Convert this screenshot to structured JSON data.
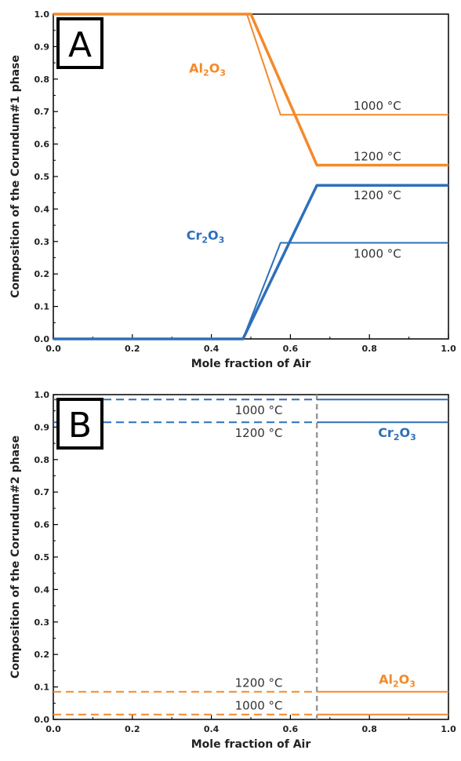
{
  "colors": {
    "al2o3": "#f5892a",
    "cr2o3": "#2e6fba",
    "divider": "#999999"
  },
  "chart_data": [
    {
      "type": "line",
      "panel_label": "A",
      "xlabel": "Mole fraction of Air",
      "ylabel": "Composition of the Corundum#1 phase",
      "xlim": [
        0,
        1
      ],
      "ylim": [
        0,
        1
      ],
      "x_ticks": [
        "0.0",
        "0.2",
        "0.4",
        "0.6",
        "0.8",
        "1.0"
      ],
      "y_ticks": [
        "0.0",
        "0.1",
        "0.2",
        "0.3",
        "0.4",
        "0.5",
        "0.6",
        "0.7",
        "0.8",
        "0.9",
        "1.0"
      ],
      "series": [
        {
          "component": "Al2O3",
          "temp": "1000 °C",
          "color": "#f5892a",
          "style": "solid",
          "width": 2,
          "points": [
            [
              0,
              1.0
            ],
            [
              0.49,
              1.0
            ],
            [
              0.575,
              0.69
            ],
            [
              1.0,
              0.69
            ]
          ]
        },
        {
          "component": "Al2O3",
          "temp": "1200 °C",
          "color": "#f5892a",
          "style": "solid",
          "width": 3.5,
          "points": [
            [
              0,
              1.0
            ],
            [
              0.5,
              1.0
            ],
            [
              0.667,
              0.535
            ],
            [
              1.0,
              0.535
            ]
          ]
        },
        {
          "component": "Cr2O3",
          "temp": "1200 °C",
          "color": "#2e6fba",
          "style": "solid",
          "width": 3.5,
          "points": [
            [
              0,
              0.0
            ],
            [
              0.48,
              0.0
            ],
            [
              0.667,
              0.473
            ],
            [
              1.0,
              0.473
            ]
          ]
        },
        {
          "component": "Cr2O3",
          "temp": "1000 °C",
          "color": "#2e6fba",
          "style": "solid",
          "width": 2,
          "points": [
            [
              0,
              0.0
            ],
            [
              0.48,
              0.0
            ],
            [
              0.575,
              0.296
            ],
            [
              1.0,
              0.296
            ]
          ]
        }
      ],
      "annotations": [
        {
          "text": "1000 °C",
          "x": 0.82,
          "y": 0.705
        },
        {
          "text": "1200 °C",
          "x": 0.82,
          "y": 0.55
        },
        {
          "text": "1200 °C",
          "x": 0.82,
          "y": 0.43
        },
        {
          "text": "1000 °C",
          "x": 0.82,
          "y": 0.25
        }
      ],
      "components": [
        {
          "sub": [
            "Al",
            "2",
            "O",
            "3"
          ],
          "color": "#f5892a",
          "x": 0.39,
          "y": 0.82
        },
        {
          "sub": [
            "Cr",
            "2",
            "O",
            "3"
          ],
          "color": "#2e6fba",
          "x": 0.385,
          "y": 0.305
        }
      ]
    },
    {
      "type": "line",
      "panel_label": "B",
      "xlabel": "Mole fraction of Air",
      "ylabel": "Composition of the Corundum#2 phase",
      "xlim": [
        0,
        1
      ],
      "ylim": [
        0,
        1
      ],
      "x_ticks": [
        "0.0",
        "0.2",
        "0.4",
        "0.6",
        "0.8",
        "1.0"
      ],
      "y_ticks": [
        "0.0",
        "0.1",
        "0.2",
        "0.3",
        "0.4",
        "0.5",
        "0.6",
        "0.7",
        "0.8",
        "0.9",
        "1.0"
      ],
      "divider_x": 0.667,
      "series": [
        {
          "component": "Cr2O3",
          "temp": "1000 °C",
          "color": "#2e6fba",
          "style": "dashed",
          "width": 2,
          "points": [
            [
              0,
              0.985
            ],
            [
              0.667,
              0.985
            ]
          ]
        },
        {
          "component": "Cr2O3",
          "temp": "1000 °C",
          "color": "#2e6fba",
          "style": "solid",
          "width": 2,
          "points": [
            [
              0.667,
              0.985
            ],
            [
              1.0,
              0.985
            ]
          ]
        },
        {
          "component": "Cr2O3",
          "temp": "1200 °C",
          "color": "#2e6fba",
          "style": "dashed",
          "width": 2,
          "points": [
            [
              0,
              0.915
            ],
            [
              0.667,
              0.915
            ]
          ]
        },
        {
          "component": "Cr2O3",
          "temp": "1200 °C",
          "color": "#2e6fba",
          "style": "solid",
          "width": 2,
          "points": [
            [
              0.667,
              0.915
            ],
            [
              1.0,
              0.915
            ]
          ]
        },
        {
          "component": "Al2O3",
          "temp": "1200 °C",
          "color": "#f5892a",
          "style": "dashed",
          "width": 2,
          "points": [
            [
              0,
              0.085
            ],
            [
              0.667,
              0.085
            ]
          ]
        },
        {
          "component": "Al2O3",
          "temp": "1200 °C",
          "color": "#f5892a",
          "style": "solid",
          "width": 2,
          "points": [
            [
              0.667,
              0.085
            ],
            [
              1.0,
              0.085
            ]
          ]
        },
        {
          "component": "Al2O3",
          "temp": "1000 °C",
          "color": "#f5892a",
          "style": "dashed",
          "width": 2,
          "points": [
            [
              0,
              0.015
            ],
            [
              0.667,
              0.015
            ]
          ]
        },
        {
          "component": "Al2O3",
          "temp": "1000 °C",
          "color": "#f5892a",
          "style": "solid",
          "width": 2,
          "points": [
            [
              0.667,
              0.015
            ],
            [
              1.0,
              0.015
            ]
          ]
        }
      ],
      "annotations": [
        {
          "text": "1000 °C",
          "x": 0.52,
          "y": 0.94
        },
        {
          "text": "1200 °C",
          "x": 0.52,
          "y": 0.87
        },
        {
          "text": "1200 °C",
          "x": 0.52,
          "y": 0.1
        },
        {
          "text": "1000 °C",
          "x": 0.52,
          "y": 0.03
        }
      ],
      "components": [
        {
          "sub": [
            "Cr",
            "2",
            "O",
            "3"
          ],
          "color": "#2e6fba",
          "x": 0.87,
          "y": 0.87
        },
        {
          "sub": [
            "Al",
            "2",
            "O",
            "3"
          ],
          "color": "#f5892a",
          "x": 0.87,
          "y": 0.11
        }
      ]
    }
  ]
}
